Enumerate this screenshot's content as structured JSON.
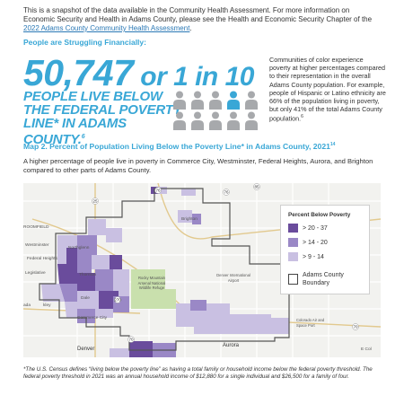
{
  "intro": {
    "text": "This is a snapshot of the data available in the Community Health Assessment. For more information on Economic Security and Health in Adams County, please see the Health and Economic Security Chapter of the ",
    "link": "2022 Adams County Community Health Assessment",
    "end": "."
  },
  "struggle_heading": "People are Struggling Financially:",
  "bignum": {
    "count": "50,747",
    "ratio": " or 1 in 10"
  },
  "povline": {
    "text": "PEOPLE LIVE BELOW THE FEDERAL POVERTY LINE* IN ADAMS COUNTY.",
    "sup": "6"
  },
  "people": {
    "total": 10,
    "highlighted": 1,
    "color": "#a7a9ac",
    "highlight_color": "#39a7d6"
  },
  "sidenote": {
    "text": "Communities of color experience poverty at higher percentages compared to their representation in the overall Adams County population. For example, people of Hispanic or Latino ethnicity are 66% of the population living in poverty, but only 41% of the total Adams County population.",
    "sup": "6"
  },
  "map": {
    "title": "Map 2. Percent of Population Living Below the Poverty Line* in Adams County, 2021",
    "title_sup": "14",
    "description": "A higher percentage of people live in poverty in Commerce City, Westminster, Federal Heights, Aurora, and Brighton compared to other parts of Adams County.",
    "labels": {
      "northglenn": "Northglenn",
      "brighton": "Brighton",
      "rocky": "Rocky Mountain Arsenal National Wildlife Refuge",
      "dia": "Denver International Airport",
      "denver": "Denver",
      "aurora": "Aurora",
      "colorado": "Colorado Air and Space Port",
      "westminster": "Westminster",
      "broomfield": "ROOMFIELD",
      "thornton": "Thornton",
      "federal": "Federal Heights",
      "commerce": "Commerce City",
      "ada": "ada",
      "kley": "kley",
      "dale": "Dale",
      "legislative": "Legislative",
      "e_col": "E Col"
    },
    "highway_labels": [
      "76",
      "76",
      "85",
      "25",
      "270",
      "70",
      "70"
    ],
    "colors": {
      "high": "#6a4c9c",
      "mid": "#9a88c6",
      "low": "#c9c0e2",
      "boundary": "#555555",
      "park": "#c9e0ad",
      "roads": "#ffffff"
    }
  },
  "legend": {
    "title": "Percent Below Poverty",
    "items": [
      {
        "label": "> 20 - 37",
        "color": "#6a4c9c"
      },
      {
        "label": "> 14 - 20",
        "color": "#9a88c6"
      },
      {
        "label": "> 9 - 14",
        "color": "#c9c0e2"
      }
    ],
    "boundary_label": "Adams County Boundary"
  },
  "footnote": "*The U.S. Census defines “living below the poverty line” as having a total family or household income below the federal poverty threshold. The federal poverty threshold in 2021 was an annual household income of $12,880 for a single individual and $26,500 for a family of four."
}
